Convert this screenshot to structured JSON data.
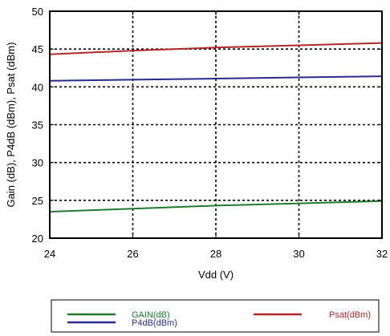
{
  "chart_data": {
    "type": "line",
    "xlabel": "Vdd (V)",
    "ylabel": "Gain (dB), P4dB (dBm), Psat (dBm)",
    "xlim": [
      24,
      32
    ],
    "ylim": [
      20,
      50
    ],
    "xticks": [
      24,
      26,
      28,
      30,
      32
    ],
    "yticks": [
      20,
      25,
      30,
      35,
      40,
      45,
      50
    ],
    "grid": true,
    "legend_position": "bottom",
    "series": [
      {
        "name": "GAIN(dB)",
        "color": "#1e7a2e",
        "x": [
          24,
          26,
          28,
          30,
          32
        ],
        "y": [
          23.5,
          23.9,
          24.3,
          24.6,
          24.9
        ]
      },
      {
        "name": "P4dB(dBm)",
        "color": "#2a2a8a",
        "x": [
          24,
          26,
          28,
          30,
          32
        ],
        "y": [
          40.8,
          40.95,
          41.1,
          41.25,
          41.4
        ]
      },
      {
        "name": "Psat(dBm)",
        "color": "#b0282a",
        "x": [
          24,
          26,
          28,
          30,
          32
        ],
        "y": [
          44.3,
          44.8,
          45.2,
          45.5,
          45.8
        ]
      }
    ]
  }
}
